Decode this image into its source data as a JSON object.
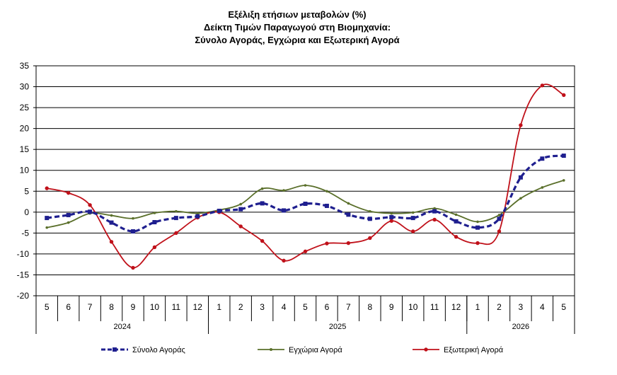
{
  "title": {
    "line1": "Εξέλιξη ετήσιων μεταβολών (%)",
    "line2": "Δείκτη Τιμών Παραγωγού στη Βιομηχανία:",
    "line3": "Σύνολο Αγοράς, Εγχώρια και Εξωτερική Αγορά"
  },
  "chart_data": {
    "type": "line",
    "title": "Εξέλιξη ετήσιων μεταβολών (%) Δείκτη Τιμών Παραγωγού στη Βιομηχανία: Σύνολο Αγοράς, Εγχώρια και Εξωτερική Αγορά",
    "categories": [
      "5",
      "6",
      "7",
      "8",
      "9",
      "10",
      "11",
      "12",
      "1",
      "2",
      "3",
      "4",
      "5",
      "6",
      "7",
      "8",
      "9",
      "10",
      "11",
      "12",
      "1",
      "2",
      "3",
      "4",
      "5"
    ],
    "year_groups": [
      {
        "label": "2024",
        "start": 0,
        "end": 7
      },
      {
        "label": "2025",
        "start": 8,
        "end": 19
      },
      {
        "label": "2026",
        "start": 20,
        "end": 24
      }
    ],
    "ylim": [
      -20,
      35
    ],
    "yticks": [
      35,
      30,
      25,
      20,
      15,
      10,
      5,
      0,
      -5,
      -10,
      -15,
      -20
    ],
    "grid": true,
    "legend_position": "bottom",
    "series": [
      {
        "name": "Σύνολο Αγοράς",
        "color": "#1f1f8f",
        "style": "dashed-square-markers",
        "values": [
          -1.4,
          -0.7,
          0.1,
          -2.5,
          -4.6,
          -2.4,
          -1.4,
          -1.0,
          0.3,
          0.7,
          2.1,
          0.4,
          2.0,
          1.5,
          -0.6,
          -1.6,
          -1.2,
          -1.4,
          0.2,
          -2.2,
          -3.7,
          -1.6,
          8.3,
          12.8,
          13.5
        ]
      },
      {
        "name": "Εγχώρια Αγορά",
        "color": "#5a6f2a",
        "style": "solid-small-markers",
        "values": [
          -3.7,
          -2.5,
          -0.3,
          -0.8,
          -1.5,
          -0.2,
          0.2,
          -0.3,
          0.5,
          1.9,
          5.6,
          5.2,
          6.4,
          5.0,
          2.1,
          0.2,
          -0.3,
          -0.1,
          0.9,
          -0.6,
          -2.3,
          -0.7,
          3.3,
          5.9,
          7.6
        ]
      },
      {
        "name": "Εξωτερική Αγορά",
        "color": "#c0111a",
        "style": "solid-dot-markers",
        "values": [
          5.7,
          4.6,
          1.7,
          -7.1,
          -13.3,
          -8.4,
          -5.0,
          -1.3,
          0.0,
          -3.4,
          -6.9,
          -11.6,
          -9.4,
          -7.5,
          -7.4,
          -6.2,
          -2.1,
          -4.6,
          -1.8,
          -5.9,
          -7.4,
          -4.6,
          20.8,
          30.3,
          28.0
        ]
      }
    ]
  }
}
